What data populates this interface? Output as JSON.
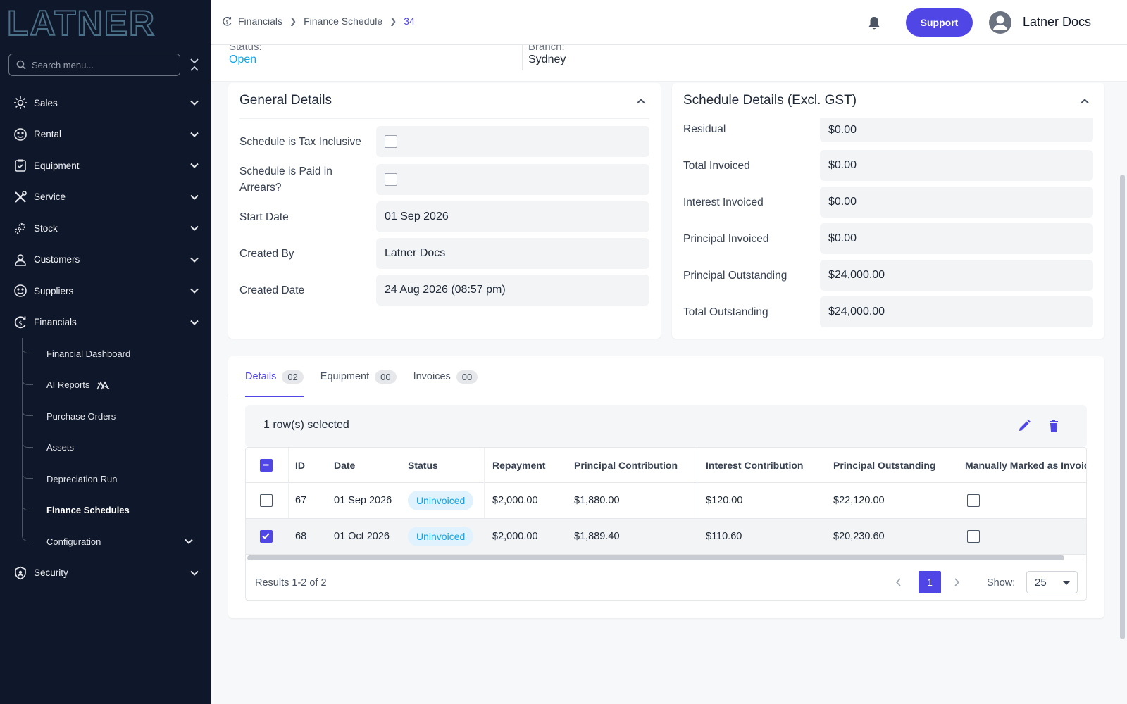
{
  "sidebar": {
    "brand": "LATNER",
    "search_placeholder": "Search menu...",
    "items": [
      {
        "label": "Sales",
        "icon": "sun-gear-icon"
      },
      {
        "label": "Rental",
        "icon": "rental-icon"
      },
      {
        "label": "Equipment",
        "icon": "clipboard-icon"
      },
      {
        "label": "Service",
        "icon": "tools-icon"
      },
      {
        "label": "Stock",
        "icon": "gears-icon"
      },
      {
        "label": "Customers",
        "icon": "person-icon"
      },
      {
        "label": "Suppliers",
        "icon": "suppliers-icon"
      },
      {
        "label": "Financials",
        "icon": "financials-icon"
      }
    ],
    "financial_sub": [
      {
        "label": "Financial Dashboard"
      },
      {
        "label": "AI Reports"
      },
      {
        "label": "Purchase Orders"
      },
      {
        "label": "Assets"
      },
      {
        "label": "Depreciation Run"
      },
      {
        "label": "Finance Schedules"
      },
      {
        "label": "Configuration"
      }
    ],
    "security": {
      "label": "Security",
      "icon": "shield-icon"
    }
  },
  "topbar": {
    "breadcrumb": [
      "Financials",
      "Finance Schedule",
      "34"
    ],
    "support_label": "Support",
    "user_name": "Latner Docs"
  },
  "status_strip": {
    "status_label": "Status:",
    "status_value": "Open",
    "branch_label": "Branch:",
    "branch_value": "Sydney"
  },
  "general_details": {
    "title": "General Details",
    "fields": [
      {
        "label": "Schedule is Tax Inclusive",
        "value": ""
      },
      {
        "label": "Schedule is Paid in Arrears?",
        "value": ""
      },
      {
        "label": "Start Date",
        "value": "01 Sep 2026"
      },
      {
        "label": "Created By",
        "value": "Latner Docs"
      },
      {
        "label": "Created Date",
        "value": "24 Aug 2026 (08:57 pm)"
      }
    ]
  },
  "schedule_details": {
    "title": "Schedule Details (Excl. GST)",
    "fields": [
      {
        "label": "Residual",
        "value": "$0.00"
      },
      {
        "label": "Total Invoiced",
        "value": "$0.00"
      },
      {
        "label": "Interest Invoiced",
        "value": "$0.00"
      },
      {
        "label": "Principal Invoiced",
        "value": "$0.00"
      },
      {
        "label": "Principal Outstanding",
        "value": "$24,000.00"
      },
      {
        "label": "Total Outstanding",
        "value": "$24,000.00"
      }
    ]
  },
  "tabs": [
    {
      "label": "Details",
      "count": "02"
    },
    {
      "label": "Equipment",
      "count": "00"
    },
    {
      "label": "Invoices",
      "count": "00"
    }
  ],
  "grid": {
    "selection_text": "1 row(s) selected",
    "columns": [
      "ID",
      "Date",
      "Status",
      "Repayment",
      "Principal Contribution",
      "Interest Contribution",
      "Principal Outstanding",
      "Manually Marked as Invoiced"
    ],
    "rows": [
      {
        "id": "67",
        "date": "01 Sep 2026",
        "status": "Uninvoiced",
        "repayment": "$2,000.00",
        "principal_contribution": "$1,880.00",
        "interest_contribution": "$120.00",
        "principal_outstanding": "$22,120.00"
      },
      {
        "id": "68",
        "date": "01 Oct 2026",
        "status": "Uninvoiced",
        "repayment": "$2,000.00",
        "principal_contribution": "$1,889.40",
        "interest_contribution": "$110.60",
        "principal_outstanding": "$20,230.60"
      }
    ],
    "results_text": "Results 1-2 of 2",
    "page": "1",
    "show_label": "Show:",
    "page_size": "25"
  },
  "colors": {
    "accent": "#4f46e5",
    "sidebar_bg": "#0f172a",
    "status_open": "#0ea5e9",
    "badge_bg": "#e0f2fe"
  }
}
